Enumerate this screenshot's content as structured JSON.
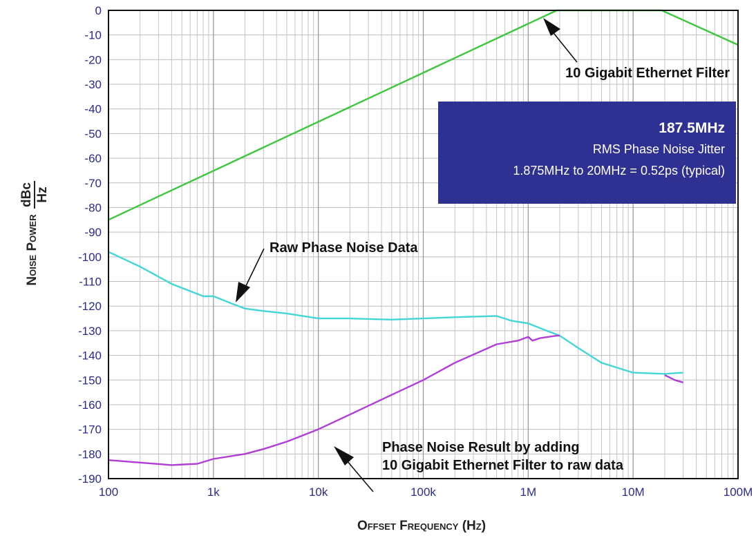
{
  "chart_data": {
    "type": "line",
    "title": "",
    "xlabel": "Offset Frequency (Hz)",
    "ylabel": "Noise Power",
    "ylabel_unit_num": "dBc",
    "ylabel_unit_den": "Hz",
    "x_scale": "log",
    "xlim": [
      100,
      100000000
    ],
    "ylim": [
      -190,
      0
    ],
    "grid": true,
    "x_ticks": [
      {
        "value": 100,
        "label": "100"
      },
      {
        "value": 1000,
        "label": "1k"
      },
      {
        "value": 10000,
        "label": "10k"
      },
      {
        "value": 100000,
        "label": "100k"
      },
      {
        "value": 1000000,
        "label": "1M"
      },
      {
        "value": 10000000,
        "label": "10M"
      },
      {
        "value": 100000000,
        "label": "100M"
      }
    ],
    "y_ticks": [
      0,
      -10,
      -20,
      -30,
      -40,
      -50,
      -60,
      -70,
      -80,
      -90,
      -100,
      -110,
      -120,
      -130,
      -140,
      -150,
      -160,
      -170,
      -180,
      -190
    ],
    "series": [
      {
        "color": "#3ec63e",
        "points": [
          [
            100,
            -85
          ],
          [
            1875000,
            0
          ],
          [
            18750000,
            0
          ],
          [
            100000000,
            -14
          ]
        ]
      },
      {
        "color": "#44d6d6",
        "points": [
          [
            100,
            -98
          ],
          [
            200,
            -104
          ],
          [
            400,
            -111
          ],
          [
            800,
            -116
          ],
          [
            1000,
            -116
          ],
          [
            1500,
            -119
          ],
          [
            2000,
            -121
          ],
          [
            3000,
            -122
          ],
          [
            5000,
            -123
          ],
          [
            10000,
            -125
          ],
          [
            20000,
            -125
          ],
          [
            50000,
            -125.5
          ],
          [
            100000,
            -125
          ],
          [
            200000,
            -124.5
          ],
          [
            500000,
            -124
          ],
          [
            700000,
            -126
          ],
          [
            1000000,
            -127
          ],
          [
            1500000,
            -130
          ],
          [
            2000000,
            -132
          ],
          [
            3000000,
            -137
          ],
          [
            5000000,
            -143
          ],
          [
            10000000,
            -147
          ],
          [
            20000000,
            -147.5
          ],
          [
            30000000,
            -147
          ]
        ]
      },
      {
        "color": "#b13cd6",
        "points": [
          [
            100,
            -182.5
          ],
          [
            200,
            -183.5
          ],
          [
            400,
            -184.5
          ],
          [
            700,
            -184
          ],
          [
            1000,
            -182
          ],
          [
            2000,
            -180
          ],
          [
            3000,
            -178
          ],
          [
            5000,
            -175
          ],
          [
            10000,
            -170
          ],
          [
            20000,
            -164
          ],
          [
            50000,
            -156
          ],
          [
            100000,
            -150
          ],
          [
            200000,
            -143
          ],
          [
            500000,
            -135.5
          ],
          [
            800000,
            -134
          ],
          [
            1000000,
            -132.5
          ],
          [
            1100000,
            -134
          ],
          [
            1300000,
            -133
          ],
          [
            1875000,
            -132
          ],
          [
            2000000,
            -132
          ]
        ]
      },
      {
        "color": "#b13cd6",
        "points": [
          [
            20000000,
            -148
          ],
          [
            25000000,
            -150
          ],
          [
            30000000,
            -151
          ]
        ]
      }
    ],
    "annotations": {
      "filter_label": "10 Gigabit Ethernet Filter",
      "raw_label": "Raw Phase Noise Data",
      "result_line1": "Phase Noise Result by adding",
      "result_line2": "10 Gigabit Ethernet Filter to raw data"
    },
    "info_box": {
      "color": "#2e3192",
      "line1": "187.5MHz",
      "line2": "RMS Phase Noise Jitter",
      "line3": "1.875MHz to 20MHz = 0.52ps (typical)"
    }
  }
}
